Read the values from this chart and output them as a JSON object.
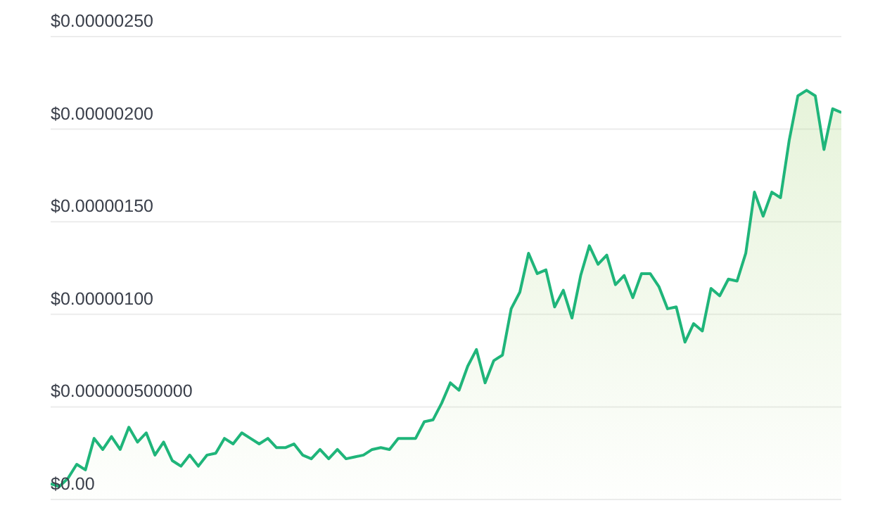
{
  "chart_data": {
    "type": "area",
    "categories": [
      null,
      null,
      null,
      null,
      null,
      null,
      null,
      null,
      null,
      null,
      null,
      null,
      null,
      null,
      null,
      null,
      null,
      null,
      null,
      null,
      null,
      null,
      null,
      null,
      null,
      null,
      null,
      null,
      null,
      null,
      null,
      null,
      null,
      null,
      null,
      null,
      null,
      null,
      null,
      null,
      null,
      null,
      null,
      null,
      null,
      null,
      null,
      null,
      null,
      null,
      null,
      null,
      null,
      null,
      null,
      null,
      null,
      null,
      null,
      null,
      null,
      null,
      null,
      null,
      null,
      null,
      null,
      null,
      null,
      null,
      null,
      null,
      null,
      null,
      null,
      null,
      null,
      null,
      null,
      null,
      null,
      null,
      null,
      null,
      null,
      null,
      null,
      null,
      null,
      null,
      null,
      null
    ],
    "series": [
      {
        "color": "#1fb57a",
        "values": [
          8.5e-08,
          7e-08,
          1.15e-07,
          1.9e-07,
          1.6e-07,
          3.3e-07,
          2.7e-07,
          3.4e-07,
          2.7e-07,
          3.9e-07,
          3.1e-07,
          3.6e-07,
          2.4e-07,
          3.1e-07,
          2.1e-07,
          1.8e-07,
          2.4e-07,
          1.8e-07,
          2.4e-07,
          2.5e-07,
          3.3e-07,
          3e-07,
          3.6e-07,
          3.3e-07,
          3e-07,
          3.3e-07,
          2.8e-07,
          2.8e-07,
          3e-07,
          2.4e-07,
          2.2e-07,
          2.7e-07,
          2.2e-07,
          2.7e-07,
          2.2e-07,
          2.3e-07,
          2.4e-07,
          2.7e-07,
          2.8e-07,
          2.7e-07,
          3.3e-07,
          3.3e-07,
          3.3e-07,
          4.2e-07,
          4.3e-07,
          5.2e-07,
          6.3e-07,
          5.9e-07,
          7.2e-07,
          8.1e-07,
          6.3e-07,
          7.5e-07,
          7.8e-07,
          1.03e-06,
          1.12e-06,
          1.33e-06,
          1.22e-06,
          1.24e-06,
          1.04e-06,
          1.13e-06,
          9.8e-07,
          1.21e-06,
          1.37e-06,
          1.27e-06,
          1.32e-06,
          1.16e-06,
          1.21e-06,
          1.09e-06,
          1.22e-06,
          1.22e-06,
          1.15e-06,
          1.03e-06,
          1.04e-06,
          8.5e-07,
          9.5e-07,
          9.1e-07,
          1.14e-06,
          1.1e-06,
          1.19e-06,
          1.18e-06,
          1.33e-06,
          1.66e-06,
          1.53e-06,
          1.66e-06,
          1.63e-06,
          1.94e-06,
          2.18e-06,
          2.21e-06,
          2.18e-06,
          1.89e-06,
          2.11e-06,
          2.09e-06
        ]
      }
    ],
    "ylim": [
      0,
      2.5e-06
    ],
    "yticks": [
      {
        "value": 0,
        "label": "$0.00"
      },
      {
        "value": 5e-07,
        "label": "$0.000000500000"
      },
      {
        "value": 1e-06,
        "label": "$0.00000100"
      },
      {
        "value": 1.5e-06,
        "label": "$0.00000150"
      },
      {
        "value": 2e-06,
        "label": "$0.00000200"
      },
      {
        "value": 2.5e-06,
        "label": "$0.00000250"
      }
    ],
    "tick_labels": "y",
    "grid": "y"
  }
}
